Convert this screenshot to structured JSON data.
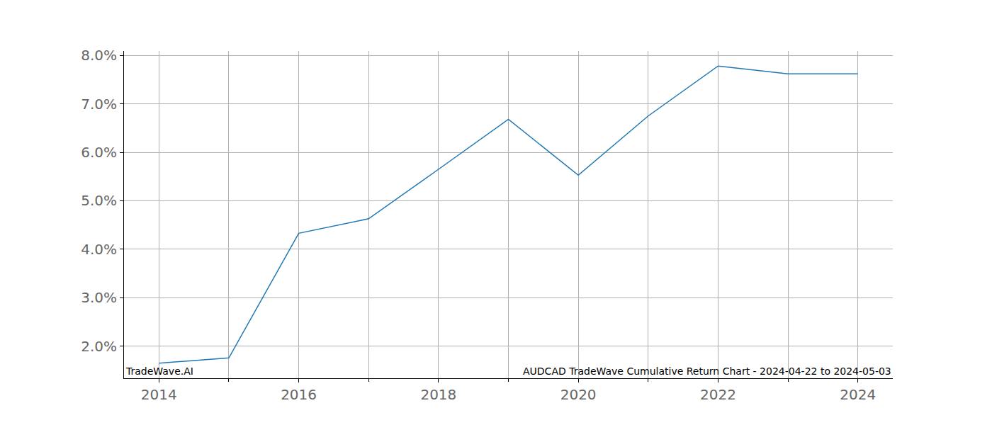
{
  "chart_data": {
    "type": "line",
    "x": [
      2014,
      2015,
      2016,
      2017,
      2018,
      2019,
      2020,
      2021,
      2022,
      2023,
      2024
    ],
    "values": [
      1.65,
      1.76,
      4.33,
      4.63,
      5.65,
      6.68,
      5.53,
      6.75,
      7.78,
      7.62,
      7.62
    ],
    "color": "#1f77b4",
    "xlim": [
      2013.5,
      2024.5
    ],
    "xticks": [
      2014,
      2016,
      2018,
      2020,
      2022,
      2024
    ],
    "ylim": [
      1.34,
      8.09
    ],
    "yticks": [
      {
        "value": 2,
        "label": "2.0%"
      },
      {
        "value": 3,
        "label": "3.0%"
      },
      {
        "value": 4,
        "label": "4.0%"
      },
      {
        "value": 5,
        "label": "5.0%"
      },
      {
        "value": 6,
        "label": "6.0%"
      },
      {
        "value": 7,
        "label": "7.0%"
      },
      {
        "value": 8,
        "label": "8.0%"
      }
    ],
    "grid": true,
    "annotations": [
      "TradeWave.AI",
      "AUDCAD TradeWave Cumulative Return Chart - 2024-04-22 to 2024-05-03"
    ]
  }
}
